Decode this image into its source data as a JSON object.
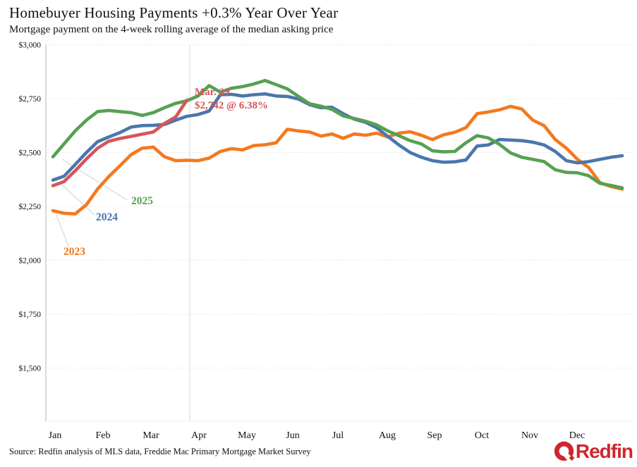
{
  "header": {
    "title": "Homebuyer Housing Payments +0.3% Year Over Year",
    "subtitle": "Mortgage payment on the 4-week rolling average of the median asking price"
  },
  "footer": {
    "source": "Source: Redfin analysis of MLS data, Freddie Mac Primary Mortgage Market Survey",
    "logo_text": "Redfin",
    "logo_color": "#CD272F"
  },
  "chart_data": {
    "type": "line",
    "title": "Homebuyer Housing Payments +0.3% Year Over Year",
    "subtitle": "Mortgage payment on the 4-week rolling average of the median asking price",
    "frequency": "weekly",
    "grid": "horizontal-dotted",
    "legend_position": "inline-labels-near-line-starts",
    "month_tick_labels": [
      "Jan",
      "Feb",
      "Mar",
      "Apr",
      "May",
      "Jun",
      "Jul",
      "Aug",
      "Sep",
      "Oct",
      "Nov",
      "Dec"
    ],
    "y_tick_labels": [
      "$3,000",
      "$2,750",
      "$2,500",
      "$2,250",
      "$2,000",
      "$1,750",
      "$1,500"
    ],
    "y_tick_values": [
      3000,
      2750,
      2500,
      2250,
      2000,
      1750,
      1500
    ],
    "ylim": [
      1250,
      3050
    ],
    "current_date_marker": {
      "annotation_line1": "Mar. 29",
      "annotation_line2": "$2,742 @ 6.38%"
    },
    "series": [
      {
        "label": "2023",
        "color": "#F4791F",
        "values": [
          2230,
          2218,
          2215,
          2258,
          2330,
          2388,
          2438,
          2490,
          2520,
          2525,
          2480,
          2462,
          2464,
          2462,
          2474,
          2505,
          2518,
          2512,
          2532,
          2536,
          2545,
          2608,
          2600,
          2595,
          2576,
          2586,
          2566,
          2586,
          2580,
          2590,
          2572,
          2590,
          2596,
          2580,
          2560,
          2582,
          2594,
          2615,
          2680,
          2688,
          2698,
          2714,
          2702,
          2650,
          2625,
          2560,
          2520,
          2468,
          2430,
          2360,
          2342,
          2330
        ]
      },
      {
        "label": "2024",
        "color": "#4B76AC",
        "values": [
          2372,
          2390,
          2444,
          2500,
          2550,
          2572,
          2592,
          2618,
          2625,
          2626,
          2630,
          2650,
          2668,
          2676,
          2692,
          2768,
          2770,
          2762,
          2768,
          2772,
          2762,
          2760,
          2748,
          2722,
          2708,
          2710,
          2680,
          2655,
          2640,
          2615,
          2575,
          2535,
          2500,
          2478,
          2462,
          2455,
          2457,
          2465,
          2530,
          2535,
          2560,
          2558,
          2555,
          2548,
          2535,
          2505,
          2462,
          2452,
          2458,
          2468,
          2478,
          2485
        ]
      },
      {
        "label": "2025",
        "color": "#57A053",
        "values": [
          2480,
          2540,
          2600,
          2650,
          2690,
          2695,
          2690,
          2685,
          2672,
          2685,
          2708,
          2728,
          2740,
          2762,
          2810,
          2780,
          2798,
          2806,
          2818,
          2834,
          2815,
          2795,
          2760,
          2726,
          2715,
          2700,
          2670,
          2658,
          2645,
          2628,
          2600,
          2578,
          2555,
          2540,
          2508,
          2503,
          2505,
          2545,
          2578,
          2568,
          2538,
          2498,
          2478,
          2468,
          2458,
          2420,
          2408,
          2406,
          2392,
          2357,
          2347,
          2336
        ]
      },
      {
        "label": "",
        "color": "#D6555B",
        "annotation": [
          "Mar. 29",
          "$2,742 @ 6.38%"
        ],
        "values": [
          2346,
          2365,
          2415,
          2470,
          2520,
          2552,
          2565,
          2575,
          2585,
          2595,
          2635,
          2665,
          2742
        ]
      }
    ]
  }
}
